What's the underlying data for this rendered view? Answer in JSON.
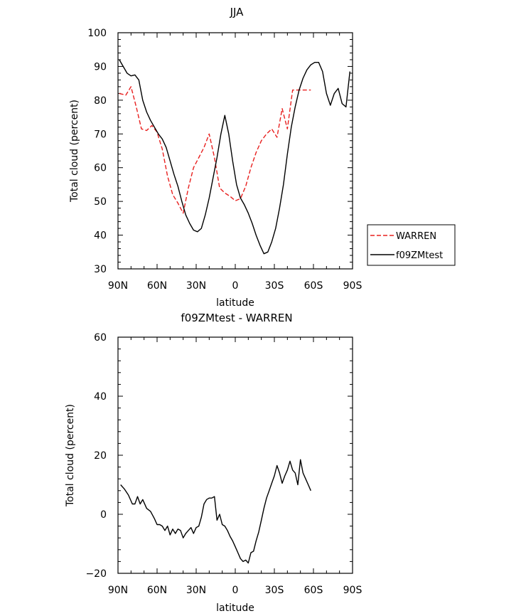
{
  "chart_data": [
    {
      "type": "line",
      "title": "JJA",
      "xlabel": "latitude",
      "ylabel": "Total cloud (percent)",
      "xlim": [
        90,
        -90
      ],
      "ylim": [
        30,
        100
      ],
      "yticks": [
        30,
        40,
        50,
        60,
        70,
        80,
        90,
        100
      ],
      "xticks": [
        90,
        60,
        30,
        0,
        -30,
        -60,
        -90
      ],
      "xtick_labels": [
        "90N",
        "60N",
        "30N",
        "0",
        "30S",
        "60S",
        "90S"
      ],
      "legend_position": "right",
      "series": [
        {
          "name": "WARREN",
          "color": "#e8201f",
          "dash": "dashed",
          "x": [
            89,
            84,
            80,
            76,
            72,
            68,
            64,
            60,
            56,
            52,
            48,
            44,
            40,
            36,
            32,
            28,
            24,
            20,
            16,
            12,
            8,
            4,
            0,
            -4,
            -8,
            -12,
            -16,
            -20,
            -24,
            -28,
            -32,
            -36,
            -40,
            -44,
            -48,
            -50,
            -52,
            -54,
            -56,
            -58
          ],
          "y": [
            82,
            81.5,
            84,
            78,
            71.5,
            71,
            72.5,
            70.5,
            65.5,
            57.5,
            52,
            49.5,
            46.5,
            54,
            60,
            63,
            66,
            70,
            63,
            54,
            52.5,
            51.5,
            50.2,
            50.8,
            54.5,
            60,
            64.5,
            68,
            70,
            71.5,
            69,
            77.5,
            71.5,
            83,
            83,
            83,
            83,
            83,
            83,
            83
          ]
        },
        {
          "name": "f09ZMtest",
          "color": "#000000",
          "dash": "solid",
          "x": [
            89,
            86,
            83,
            80,
            77,
            74,
            71,
            68,
            65,
            62,
            59,
            56,
            53,
            50,
            47,
            44,
            41,
            38,
            35,
            32,
            29,
            26,
            23,
            20,
            17,
            14,
            11,
            8,
            5,
            2,
            -1,
            -4,
            -7,
            -10,
            -13,
            -16,
            -19,
            -22,
            -25,
            -28,
            -31,
            -34,
            -37,
            -40,
            -43,
            -46,
            -49,
            -52,
            -55,
            -58,
            -61,
            -64,
            -67,
            -70,
            -73,
            -76,
            -79,
            -82,
            -85,
            -88
          ],
          "y": [
            92,
            90,
            88,
            87.2,
            87.5,
            86,
            80,
            76.5,
            74,
            72,
            70,
            68.5,
            66,
            62,
            58,
            54.5,
            50,
            46,
            43.5,
            41.5,
            41,
            42,
            46,
            51,
            57,
            63,
            70,
            75.5,
            70,
            62,
            55,
            51,
            49,
            46.5,
            43.5,
            40,
            37,
            34.5,
            35,
            38,
            42,
            48,
            55,
            64,
            72,
            78,
            83,
            86.5,
            89,
            90.5,
            91.2,
            91.2,
            88.5,
            82,
            78.5,
            82,
            83.5,
            79,
            78,
            88.5
          ]
        }
      ]
    },
    {
      "type": "line",
      "title": "f09ZMtest - WARREN",
      "xlabel": "latitude",
      "ylabel": "Total cloud (percent)",
      "xlim": [
        90,
        -90
      ],
      "ylim": [
        -20,
        60
      ],
      "yticks": [
        -20,
        0,
        20,
        40,
        60
      ],
      "xticks": [
        90,
        60,
        30,
        0,
        -30,
        -60,
        -90
      ],
      "xtick_labels": [
        "90N",
        "60N",
        "30N",
        "0",
        "30S",
        "60S",
        "90S"
      ],
      "series": [
        {
          "color": "#000000",
          "dash": "solid",
          "x": [
            88,
            85,
            82,
            79,
            77,
            75,
            73,
            71,
            68,
            65,
            62,
            60,
            58,
            56,
            54,
            52,
            50,
            48,
            46,
            44,
            42,
            40,
            38,
            36,
            34,
            32,
            30,
            28,
            26,
            24,
            22,
            20,
            18,
            16,
            14,
            12,
            10,
            8,
            6,
            4,
            2,
            0,
            -2,
            -4,
            -6,
            -8,
            -10,
            -12,
            -14,
            -16,
            -18,
            -20,
            -22,
            -24,
            -26,
            -28,
            -30,
            -32,
            -34,
            -36,
            -38,
            -40,
            -42,
            -44,
            -46,
            -48,
            -50,
            -52,
            -54,
            -56,
            -58
          ],
          "y": [
            10,
            8.5,
            6.5,
            3.5,
            3.5,
            6,
            3.5,
            5,
            2,
            1,
            -1.5,
            -3.5,
            -3.5,
            -4,
            -5.5,
            -4,
            -7,
            -5,
            -6.5,
            -5,
            -5.5,
            -8,
            -6.5,
            -5.5,
            -4.5,
            -6.5,
            -4.5,
            -4,
            -1,
            3.5,
            5,
            5.5,
            5.5,
            6,
            -2,
            0,
            -3.5,
            -4,
            -5.5,
            -7.5,
            -9,
            -11,
            -13,
            -15,
            -16,
            -15.5,
            -16.5,
            -13,
            -12.5,
            -9,
            -6,
            -2,
            2,
            5.5,
            8,
            10.5,
            13,
            16.5,
            14,
            10.5,
            13,
            15,
            18,
            15,
            14,
            10,
            18.5,
            14,
            12,
            10,
            8
          ]
        }
      ]
    }
  ]
}
